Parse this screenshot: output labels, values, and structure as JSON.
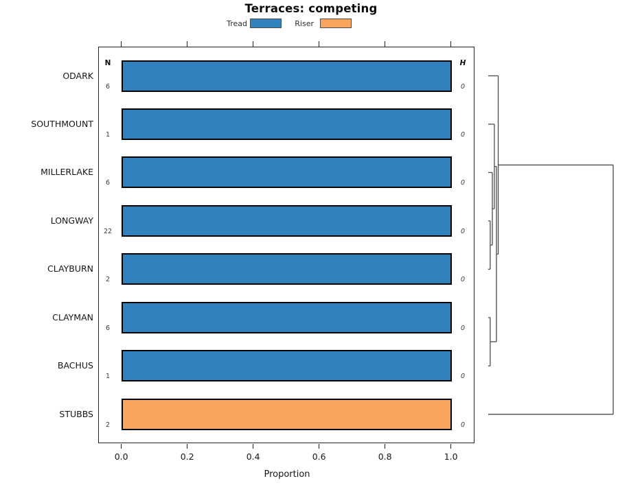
{
  "title": "Terraces: competing",
  "legend": {
    "items": [
      {
        "label": "Tread",
        "color": "#3181BC"
      },
      {
        "label": "Riser",
        "color": "#FAA55E"
      }
    ]
  },
  "columns": {
    "n_header": "N",
    "h_header": "H"
  },
  "axis": {
    "xlabel": "Proportion",
    "tick_labels": [
      "0.0",
      "0.2",
      "0.4",
      "0.6",
      "0.8",
      "1.0"
    ]
  },
  "chart_data": {
    "type": "bar",
    "orientation": "horizontal",
    "title": "Terraces: competing",
    "xlabel": "Proportion",
    "xlim": [
      0,
      1
    ],
    "xticks": [
      0.0,
      0.2,
      0.4,
      0.6,
      0.8,
      1.0
    ],
    "grid": false,
    "legend_position": "top",
    "series_colors": {
      "Tread": "#3181BC",
      "Riser": "#FAA55E"
    },
    "rows": [
      {
        "label": "ODARK",
        "n": "6",
        "h": "0",
        "value": 1.0,
        "series": "Tread"
      },
      {
        "label": "SOUTHMOUNT",
        "n": "1",
        "h": "0",
        "value": 1.0,
        "series": "Tread"
      },
      {
        "label": "MILLERLAKE",
        "n": "6",
        "h": "0",
        "value": 1.0,
        "series": "Tread"
      },
      {
        "label": "LONGWAY",
        "n": "22",
        "h": "0",
        "value": 1.0,
        "series": "Tread"
      },
      {
        "label": "CLAYBURN",
        "n": "2",
        "h": "0",
        "value": 1.0,
        "series": "Tread"
      },
      {
        "label": "CLAYMAN",
        "n": "6",
        "h": "0",
        "value": 1.0,
        "series": "Tread"
      },
      {
        "label": "BACHUS",
        "n": "1",
        "h": "0",
        "value": 1.0,
        "series": "Tread"
      },
      {
        "label": "STUBBS",
        "n": "2",
        "h": "0",
        "value": 1.0,
        "series": "Riser"
      }
    ],
    "dendrogram": {
      "h": 1.0,
      "children": [
        {
          "h": 0.08,
          "children": [
            {
              "leaf": "ODARK"
            },
            {
              "h": 0.066,
              "children": [
                {
                  "h": 0.049,
                  "children": [
                    {
                      "leaf": "SOUTHMOUNT"
                    },
                    {
                      "h": 0.033,
                      "children": [
                        {
                          "leaf": "MILLERLAKE"
                        },
                        {
                          "h": 0.016,
                          "children": [
                            {
                              "leaf": "LONGWAY"
                            },
                            {
                              "leaf": "CLAYBURN"
                            }
                          ]
                        }
                      ]
                    }
                  ]
                },
                {
                  "h": 0.016,
                  "children": [
                    {
                      "leaf": "CLAYMAN"
                    },
                    {
                      "leaf": "BACHUS"
                    }
                  ]
                }
              ]
            }
          ]
        },
        {
          "leaf": "STUBBS"
        }
      ]
    }
  }
}
